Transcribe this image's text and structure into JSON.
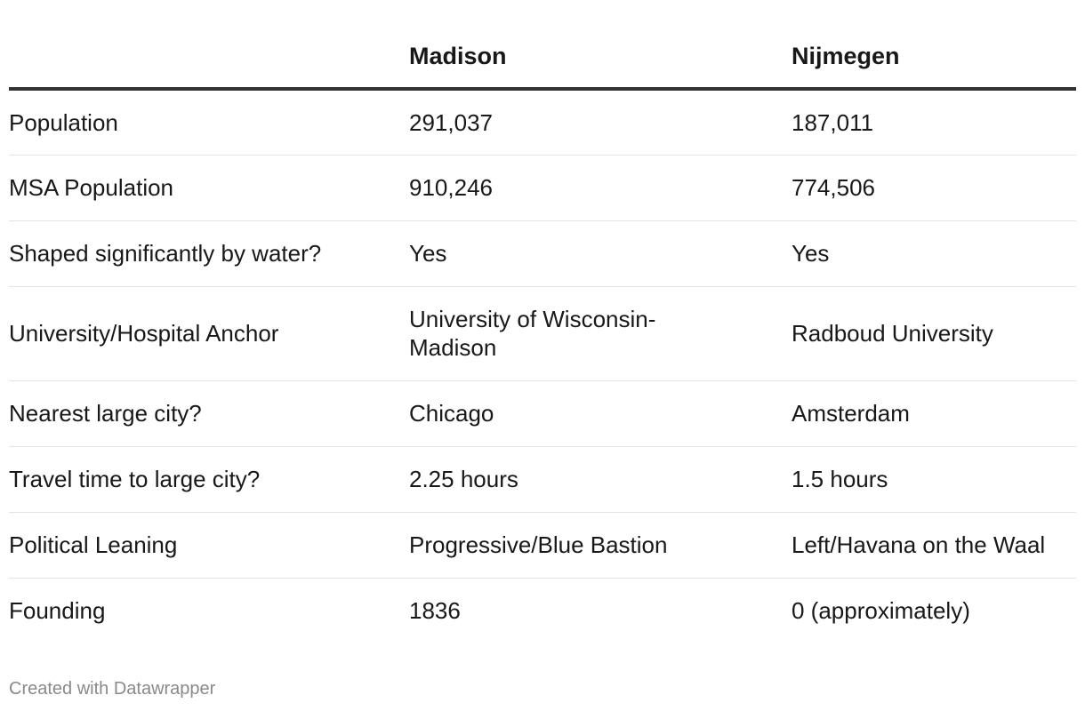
{
  "chart_data": {
    "type": "table",
    "columns": [
      "",
      "Madison",
      "Nijmegen"
    ],
    "rows": [
      [
        "Population",
        "291,037",
        "187,011"
      ],
      [
        "MSA Population",
        "910,246",
        "774,506"
      ],
      [
        "Shaped significantly by water?",
        "Yes",
        "Yes"
      ],
      [
        "University/Hospital Anchor",
        "University of Wisconsin-Madison",
        "Radboud University"
      ],
      [
        "Nearest large city?",
        "Chicago",
        "Amsterdam"
      ],
      [
        "Travel time to large city?",
        "2.25 hours",
        "1.5 hours"
      ],
      [
        "Political Leaning",
        "Progressive/Blue Bastion",
        "Left/Havana on the Waal"
      ],
      [
        "Founding",
        "1836",
        "0 (approximately)"
      ]
    ]
  },
  "footer": "Created with Datawrapper",
  "colors": {
    "text": "#181818",
    "header_rule": "#333333",
    "row_rule": "#e3e3e3",
    "footer_text": "#8a8a8a"
  }
}
